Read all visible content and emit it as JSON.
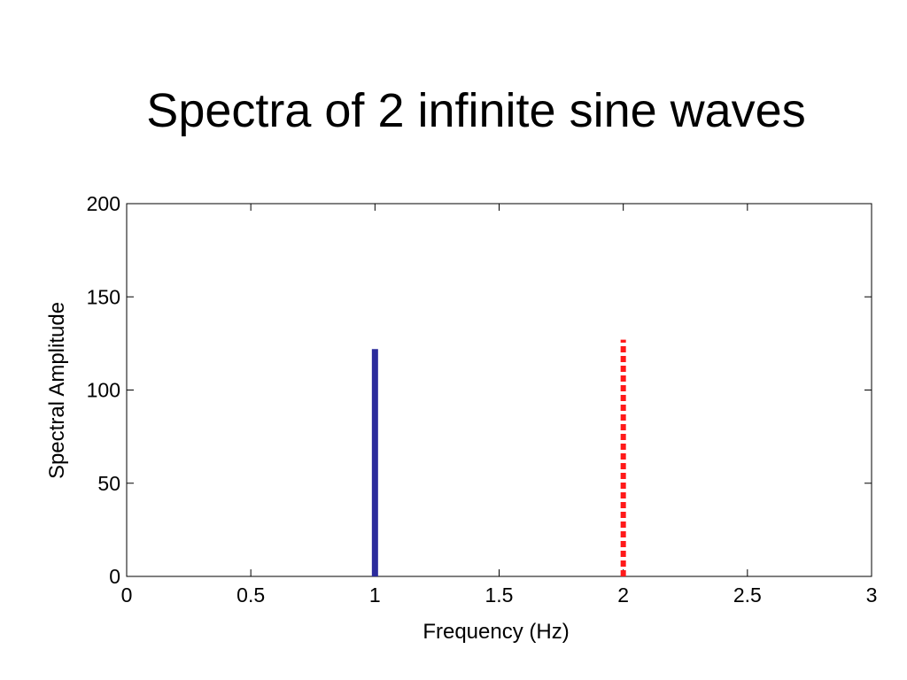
{
  "slide": {
    "title": "Spectra of 2 infinite sine waves"
  },
  "chart_data": {
    "type": "bar",
    "title": "",
    "xlabel": "Frequency (Hz)",
    "ylabel": "Spectral Amplitude",
    "xlim": [
      0,
      3
    ],
    "ylim": [
      0,
      200
    ],
    "xticks": [
      "0",
      "0.5",
      "1",
      "1.5",
      "2",
      "2.5",
      "3"
    ],
    "yticks": [
      "0",
      "50",
      "100",
      "150",
      "200"
    ],
    "grid": false,
    "series": [
      {
        "x": [
          1
        ],
        "values": [
          122
        ],
        "color": "#2b2b9c",
        "style": "solid"
      },
      {
        "x": [
          2
        ],
        "values": [
          127
        ],
        "color": "#ff1a1a",
        "style": "dotted"
      }
    ]
  }
}
